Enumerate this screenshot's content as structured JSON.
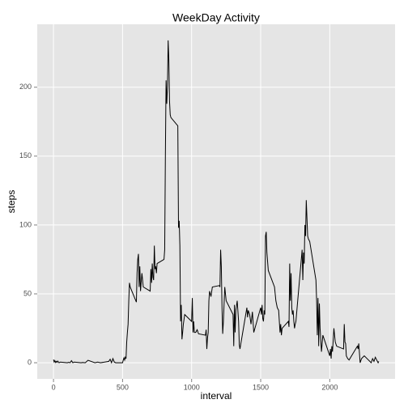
{
  "chart_data": {
    "type": "line",
    "title": "WeekDay Activity",
    "x_label": "interval",
    "y_label": "steps",
    "x": [
      0,
      5,
      10,
      15,
      20,
      25,
      30,
      40,
      50,
      100,
      110,
      120,
      130,
      140,
      150,
      200,
      210,
      230,
      250,
      300,
      320,
      340,
      400,
      410,
      420,
      430,
      440,
      450,
      500,
      505,
      510,
      515,
      520,
      525,
      530,
      535,
      540,
      545,
      550,
      555,
      600,
      605,
      610,
      615,
      620,
      625,
      630,
      640,
      650,
      700,
      705,
      710,
      715,
      720,
      725,
      730,
      735,
      740,
      745,
      750,
      800,
      805,
      810,
      815,
      820,
      825,
      830,
      835,
      840,
      845,
      850,
      900,
      905,
      910,
      915,
      920,
      925,
      930,
      935,
      940,
      950,
      1000,
      1005,
      1010,
      1015,
      1020,
      1030,
      1040,
      1050,
      1100,
      1105,
      1110,
      1115,
      1120,
      1125,
      1130,
      1140,
      1150,
      1200,
      1205,
      1210,
      1215,
      1220,
      1225,
      1230,
      1240,
      1250,
      1300,
      1305,
      1310,
      1315,
      1320,
      1330,
      1340,
      1345,
      1350,
      1400,
      1405,
      1410,
      1420,
      1430,
      1440,
      1450,
      1500,
      1505,
      1510,
      1515,
      1520,
      1525,
      1530,
      1535,
      1540,
      1545,
      1555,
      1600,
      1610,
      1620,
      1630,
      1640,
      1645,
      1650,
      1655,
      1700,
      1705,
      1710,
      1715,
      1720,
      1725,
      1730,
      1735,
      1740,
      1745,
      1750,
      1755,
      1800,
      1805,
      1810,
      1815,
      1820,
      1825,
      1830,
      1835,
      1840,
      1845,
      1850,
      1855,
      1900,
      1905,
      1910,
      1915,
      1920,
      1925,
      1930,
      1940,
      1950,
      2000,
      2005,
      2010,
      2015,
      2020,
      2030,
      2040,
      2050,
      2100,
      2105,
      2110,
      2115,
      2120,
      2130,
      2140,
      2200,
      2205,
      2210,
      2220,
      2230,
      2240,
      2250,
      2300,
      2310,
      2320,
      2330,
      2340,
      2350,
      2355
    ],
    "values": [
      2.3,
      0.5,
      1.5,
      0.2,
      1,
      0.3,
      1.2,
      0,
      0.5,
      0,
      0.3,
      0,
      1.5,
      0,
      0.5,
      0,
      0.2,
      0,
      1.8,
      0,
      0.5,
      0,
      1,
      2.5,
      0,
      3,
      0.5,
      0,
      0,
      2,
      3.5,
      2,
      4,
      3,
      15,
      22,
      28,
      45,
      58,
      55,
      44,
      65,
      75,
      79,
      55,
      70,
      52,
      65,
      55,
      52,
      68,
      58,
      72,
      62,
      60,
      85,
      68,
      70,
      65,
      72,
      75,
      82,
      150,
      205,
      188,
      200,
      234,
      220,
      190,
      180,
      178,
      172,
      98,
      103,
      85,
      30,
      42,
      17,
      22,
      28,
      35,
      30,
      47,
      22,
      30,
      22,
      22,
      24,
      21,
      20,
      24,
      10,
      18,
      22,
      45,
      52,
      48,
      55,
      56,
      55,
      82,
      70,
      40,
      21,
      30,
      55,
      45,
      35,
      12,
      42,
      22,
      38,
      45,
      30,
      13,
      10,
      40,
      33,
      38,
      35,
      28,
      37,
      22,
      40,
      35,
      42,
      32,
      30,
      38,
      35,
      92,
      95,
      80,
      67,
      55,
      45,
      40,
      38,
      22,
      28,
      20,
      25,
      30,
      26,
      72,
      45,
      65,
      40,
      35,
      38,
      30,
      25,
      28,
      30,
      82,
      60,
      80,
      72,
      100,
      92,
      118,
      105,
      92,
      90,
      89,
      88,
      60,
      45,
      20,
      47,
      12,
      43,
      25,
      8,
      20,
      5,
      10,
      3,
      12,
      8,
      25,
      15,
      12,
      10,
      28,
      15,
      14,
      5,
      3,
      2,
      12,
      10,
      14,
      0,
      3,
      4,
      5,
      0,
      3,
      1,
      4,
      2,
      0,
      1
    ],
    "color": "#000000",
    "xlim": [
      -117.75,
      2472.75
    ],
    "xticks": [
      0,
      500,
      1000,
      1500,
      2000
    ],
    "ylim": [
      -11.7,
      245.7
    ],
    "yticks": [
      0,
      50,
      100,
      150,
      200
    ],
    "grid": true
  }
}
